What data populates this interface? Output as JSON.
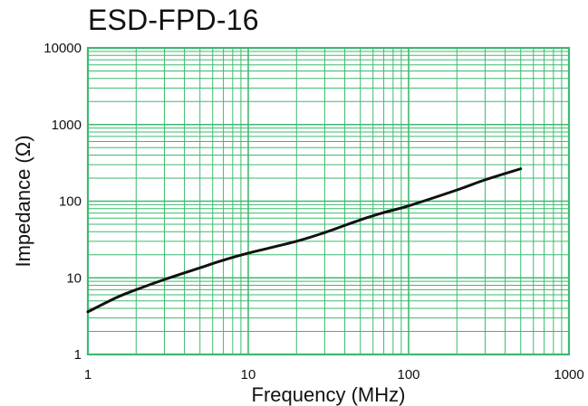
{
  "chart_data": {
    "type": "line",
    "title": "ESD-FPD-16",
    "xlabel": "Frequency (MHz)",
    "ylabel": "Impedance (Ω)",
    "xscale": "log",
    "yscale": "log",
    "xlim": [
      1,
      1000
    ],
    "ylim": [
      1,
      10000
    ],
    "x_ticks": [
      1,
      10,
      100,
      1000
    ],
    "x_tick_labels": [
      "1",
      "10",
      "100",
      "1000"
    ],
    "y_ticks": [
      1,
      10,
      100,
      1000,
      10000
    ],
    "y_tick_labels": [
      "1",
      "10",
      "100",
      "1000",
      "10000"
    ],
    "grid": true,
    "grid_color": "#3dba6e",
    "line_color": "#111111",
    "series": [
      {
        "x": [
          1,
          1.5,
          2,
          3,
          5,
          7,
          10,
          20,
          30,
          50,
          70,
          100,
          200,
          300,
          500
        ],
        "y": [
          3.6,
          5.5,
          7,
          9.5,
          13.5,
          17,
          21,
          30,
          39,
          57,
          71,
          87,
          140,
          190,
          265
        ]
      }
    ]
  }
}
